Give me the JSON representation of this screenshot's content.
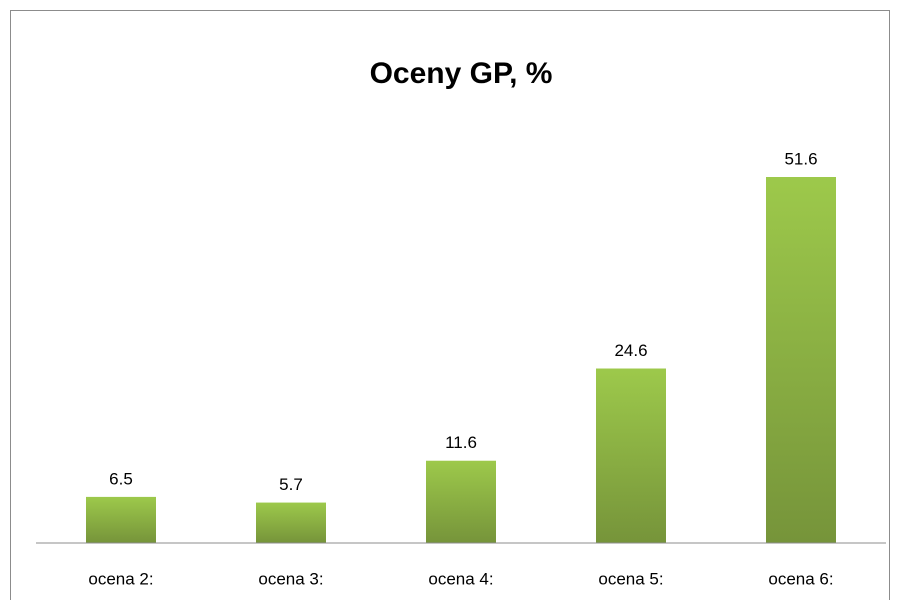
{
  "chart_data": {
    "type": "bar",
    "title": "Oceny GP, %",
    "categories": [
      "ocena 2:",
      "ocena 3:",
      "ocena 4:",
      "ocena 5:",
      "ocena 6:"
    ],
    "values": [
      6.5,
      5.7,
      11.6,
      24.6,
      51.6
    ],
    "color": "#8db543"
  }
}
